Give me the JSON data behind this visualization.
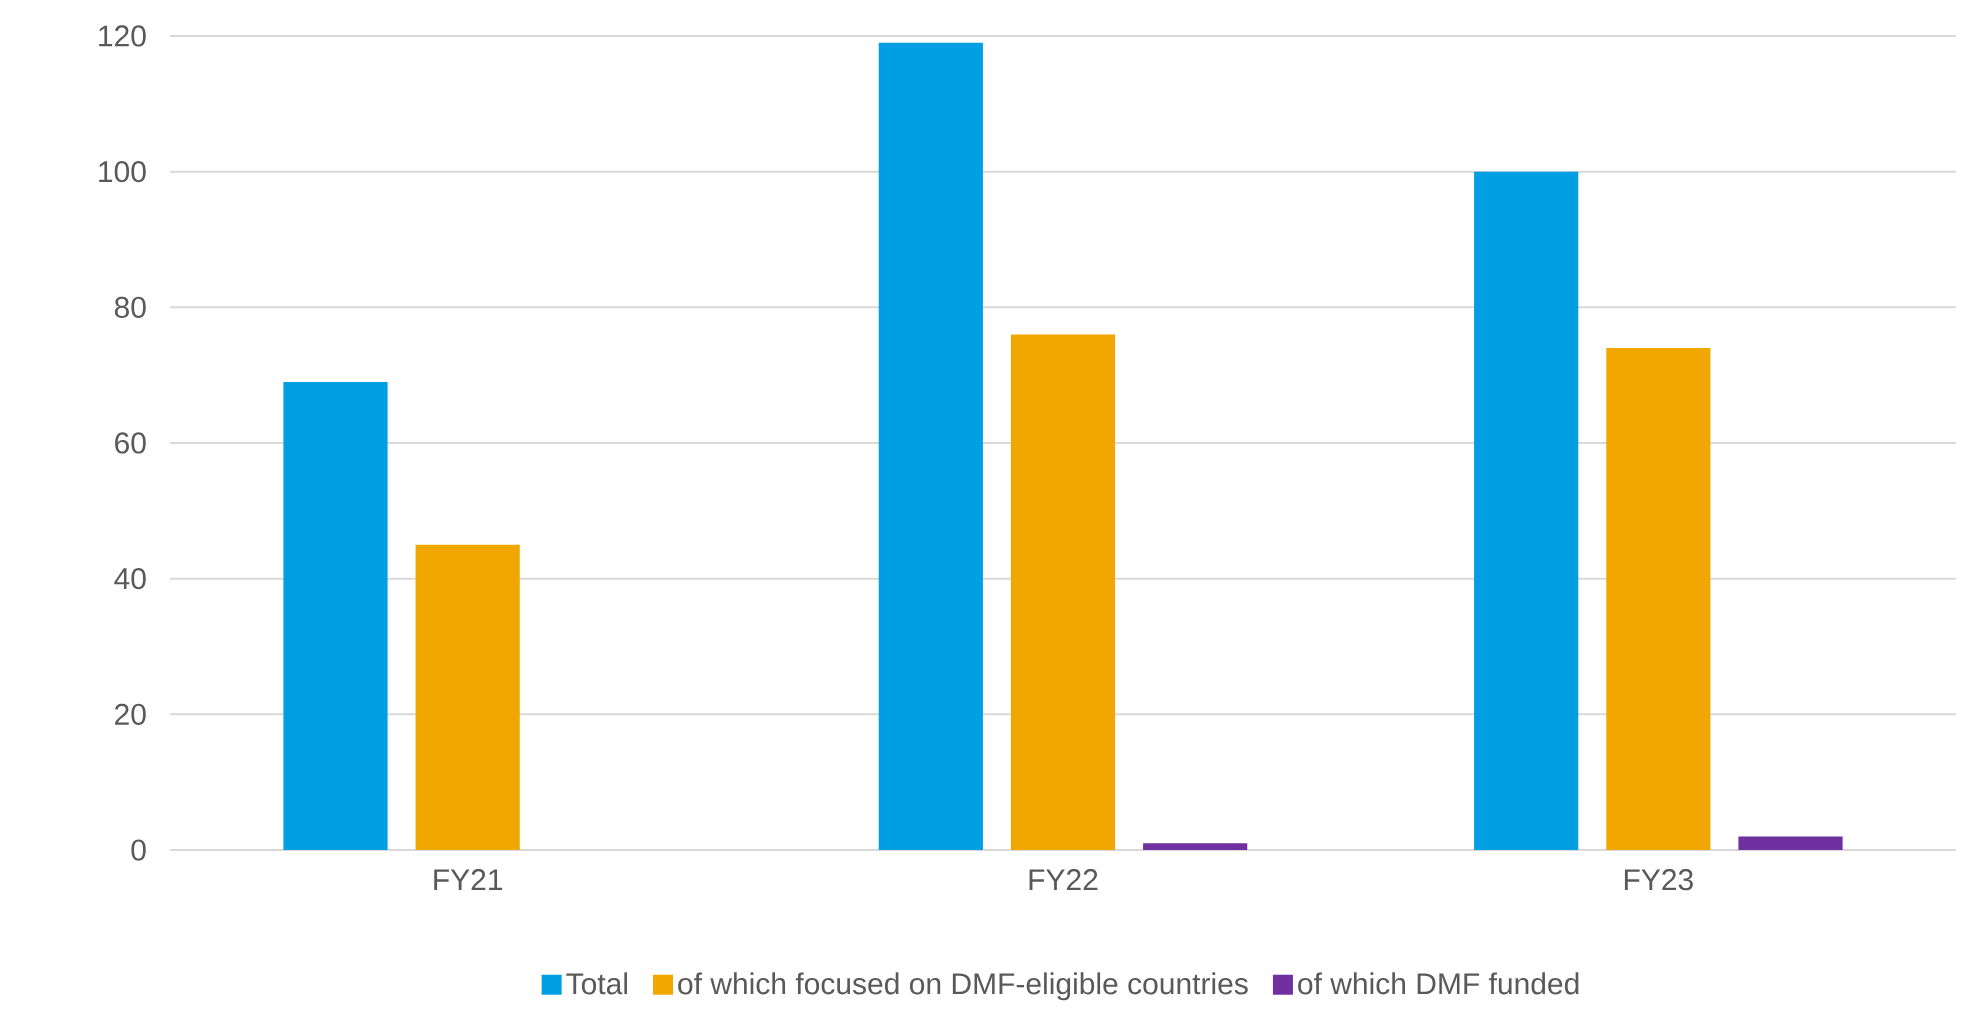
{
  "chart_data": {
    "type": "bar",
    "categories": [
      "FY21",
      "FY22",
      "FY23"
    ],
    "series": [
      {
        "name": "Total",
        "color": "#009fe3",
        "values": [
          69,
          119,
          100
        ]
      },
      {
        "name": "of which focused on DMF-eligible countries",
        "color": "#f0a800",
        "values": [
          45,
          76,
          74
        ]
      },
      {
        "name": "of which DMF funded",
        "color": "#7030a0",
        "values": [
          0,
          1,
          2
        ]
      }
    ],
    "ylim": [
      0,
      120
    ],
    "yticks": [
      0,
      20,
      40,
      60,
      80,
      100,
      120
    ],
    "grid": "y",
    "legend": "bottom"
  }
}
